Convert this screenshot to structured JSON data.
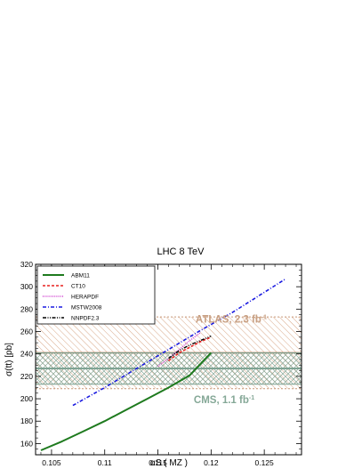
{
  "chart_data": {
    "type": "line",
    "title": "LHC 8 TeV",
    "xlabel": "αS ( MZ )",
    "ylabel": "σ(tt) [pb]",
    "xlim": [
      0.1035,
      0.1285
    ],
    "ylim": [
      150,
      320
    ],
    "xticks": [
      "0.105",
      "0.11",
      "0.115",
      "0.12",
      "0.125"
    ],
    "yticks": [
      "160",
      "180",
      "200",
      "220",
      "240",
      "260",
      "280",
      "300",
      "320"
    ],
    "legend_position": "top-left",
    "series": [
      {
        "name": "ABM11",
        "color": "#1e7a1e",
        "style": "solid",
        "x": [
          0.104,
          0.106,
          0.108,
          0.11,
          0.112,
          0.114,
          0.116,
          0.118,
          0.12
        ],
        "y": [
          154,
          162,
          171,
          180,
          190,
          200,
          210,
          221,
          241
        ]
      },
      {
        "name": "CT10",
        "color": "#e8201e",
        "style": "dashed",
        "x": [
          0.116,
          0.117,
          0.118,
          0.119,
          0.12
        ],
        "y": [
          234,
          241,
          246,
          251,
          255
        ]
      },
      {
        "name": "HERAPDF",
        "color": "#d040d0",
        "style": "dotted",
        "x": [
          0.115,
          0.116,
          0.117,
          0.118,
          0.119
        ],
        "y": [
          229,
          236,
          244,
          252,
          259
        ]
      },
      {
        "name": "MSTW2008",
        "color": "#1a1ae0",
        "style": "dashdot",
        "x": [
          0.107,
          0.11,
          0.113,
          0.116,
          0.119,
          0.122,
          0.125,
          0.127
        ],
        "y": [
          194,
          210,
          227,
          244,
          261,
          277,
          295,
          307
        ]
      },
      {
        "name": "NNPDF2.3",
        "color": "#000000",
        "style": "dashdotdot",
        "x": [
          0.116,
          0.117,
          0.118,
          0.119,
          0.12
        ],
        "y": [
          236,
          243,
          248,
          252,
          256
        ]
      }
    ],
    "bands": [
      {
        "label": "ATLAS, 2.3 fb",
        "label_sup": "-1",
        "y_center": 241,
        "y_low": 209,
        "y_high": 273,
        "color": "#c89878"
      },
      {
        "label": "CMS, 1.1 fb",
        "label_sup": "-1",
        "y_center": 227,
        "y_low": 213,
        "y_high": 241,
        "color": "#7aa090"
      }
    ]
  }
}
